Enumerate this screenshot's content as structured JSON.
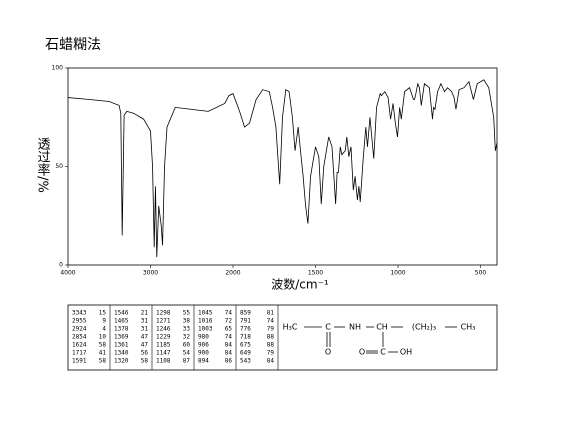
{
  "chart_data": {
    "type": "line",
    "title": "石蜡糊法",
    "xlabel": "波数/cm⁻¹",
    "ylabel": "透过率/%",
    "x": [
      4000,
      3738,
      3500,
      3381,
      3360,
      3343,
      3320,
      3286,
      3202,
      3083,
      3000,
      2975,
      2955,
      2940,
      2924,
      2900,
      2870,
      2854,
      2830,
      2800,
      2700,
      2500,
      2300,
      2100,
      2050,
      2000,
      1960,
      1930,
      1900,
      1860,
      1820,
      1780,
      1760,
      1740,
      1717,
      1700,
      1680,
      1660,
      1640,
      1624,
      1605,
      1591,
      1575,
      1560,
      1546,
      1530,
      1500,
      1480,
      1465,
      1450,
      1420,
      1400,
      1378,
      1369,
      1361,
      1350,
      1340,
      1320,
      1310,
      1298,
      1285,
      1271,
      1260,
      1246,
      1237,
      1229,
      1210,
      1195,
      1185,
      1170,
      1147,
      1130,
      1108,
      1100,
      1080,
      1060,
      1045,
      1030,
      1016,
      1003,
      990,
      980,
      960,
      930,
      906,
      900,
      894,
      880,
      870,
      859,
      840,
      810,
      791,
      785,
      776,
      760,
      740,
      718,
      700,
      675,
      660,
      649,
      630,
      600,
      570,
      543,
      520,
      480,
      450,
      420,
      410,
      400
    ],
    "values": [
      85,
      84,
      83,
      81,
      77,
      15,
      76,
      78,
      77,
      74,
      68,
      50,
      9,
      40,
      4,
      30,
      20,
      10,
      50,
      70,
      80,
      79,
      78,
      82,
      86,
      87,
      78,
      70,
      72,
      84,
      89,
      88,
      80,
      70,
      41,
      75,
      89,
      88,
      75,
      58,
      70,
      58,
      45,
      30,
      21,
      45,
      60,
      55,
      31,
      50,
      65,
      60,
      31,
      47,
      47,
      60,
      56,
      58,
      65,
      55,
      60,
      38,
      45,
      33,
      40,
      32,
      55,
      70,
      60,
      75,
      54,
      80,
      87,
      86,
      88,
      85,
      74,
      82,
      72,
      65,
      80,
      74,
      88,
      90,
      84,
      84,
      86,
      92,
      90,
      81,
      92,
      90,
      74,
      80,
      79,
      88,
      92,
      88,
      90,
      88,
      85,
      79,
      89,
      90,
      93,
      84,
      92,
      94,
      90,
      75,
      58,
      62
    ],
    "color": "#000000",
    "xlim": [
      4000,
      400
    ],
    "ylim": [
      0,
      100
    ],
    "xticks": [
      4000,
      3000,
      2000,
      1500,
      1000,
      500
    ],
    "yticks": [
      0,
      50,
      100
    ],
    "x_scale_break": 2000,
    "x_scale_ratio": 2
  },
  "peak_table": [
    [
      [
        "3343",
        "15"
      ],
      [
        "2955",
        "9"
      ],
      [
        "2924",
        "4"
      ],
      [
        "2854",
        "10"
      ],
      [
        "1624",
        "58"
      ],
      [
        "1717",
        "41"
      ],
      [
        "1591",
        "58"
      ]
    ],
    [
      [
        "1546",
        "21"
      ],
      [
        "1465",
        "31"
      ],
      [
        "1378",
        "31"
      ],
      [
        "1369",
        "47"
      ],
      [
        "1361",
        "47"
      ],
      [
        "1340",
        "56"
      ],
      [
        "1320",
        "58"
      ]
    ],
    [
      [
        "1298",
        "55"
      ],
      [
        "1271",
        "38"
      ],
      [
        "1246",
        "33"
      ],
      [
        "1229",
        "32"
      ],
      [
        "1185",
        "60"
      ],
      [
        "1147",
        "54"
      ],
      [
        "1108",
        "87"
      ]
    ],
    [
      [
        "1045",
        "74"
      ],
      [
        "1016",
        "72"
      ],
      [
        "1003",
        "65"
      ],
      [
        "980",
        "74"
      ],
      [
        "906",
        "84"
      ],
      [
        "900",
        "84"
      ],
      [
        "894",
        "86"
      ]
    ],
    [
      [
        "859",
        "81"
      ],
      [
        "791",
        "74"
      ],
      [
        "776",
        "79"
      ],
      [
        "718",
        "88"
      ],
      [
        "675",
        "88"
      ],
      [
        "649",
        "79"
      ],
      [
        "543",
        "84"
      ]
    ]
  ],
  "structure": {
    "labels": [
      "H₃C",
      "C",
      "NH",
      "CH",
      "(CH₂)₃",
      "CH₃",
      "O",
      "O",
      "C",
      "OH"
    ]
  }
}
